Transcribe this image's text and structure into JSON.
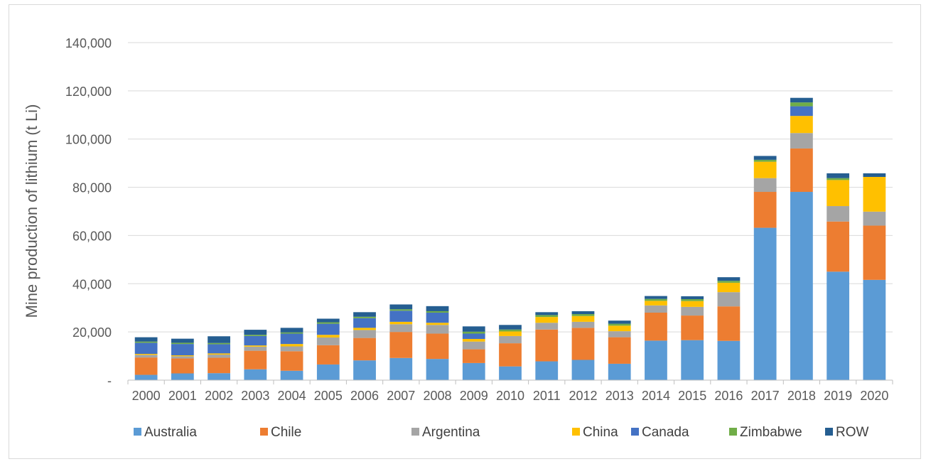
{
  "chart_data": {
    "type": "bar",
    "stacked": true,
    "title": "",
    "xlabel": "",
    "ylabel": "Mine production of lithium  (t Li)",
    "ylim": [
      0,
      140000
    ],
    "yticks": [
      0,
      20000,
      40000,
      60000,
      80000,
      100000,
      120000,
      140000
    ],
    "ytick_labels": [
      "-",
      "20,000",
      "40,000",
      "60,000",
      "80,000",
      "100,000",
      "120,000",
      "140,000"
    ],
    "grid": true,
    "legend_position": "bottom",
    "categories": [
      "2000",
      "2001",
      "2002",
      "2003",
      "2004",
      "2005",
      "2006",
      "2007",
      "2008",
      "2009",
      "2010",
      "2011",
      "2012",
      "2013",
      "2014",
      "2015",
      "2016",
      "2017",
      "2018",
      "2019",
      "2020"
    ],
    "series": [
      {
        "name": "Australia",
        "color": "#5b9bd5",
        "values": [
          2200,
          2800,
          2900,
          4500,
          3900,
          6500,
          8200,
          9200,
          8800,
          7100,
          5700,
          7800,
          8400,
          6800,
          16400,
          16600,
          16300,
          63200,
          78100,
          45000,
          41600
        ]
      },
      {
        "name": "Chile",
        "color": "#ed7d31",
        "values": [
          7200,
          6200,
          6400,
          7700,
          8100,
          8000,
          9300,
          10800,
          10500,
          5700,
          9600,
          13200,
          13300,
          11000,
          11600,
          10200,
          14300,
          14900,
          18000,
          20800,
          22500
        ]
      },
      {
        "name": "Argentina",
        "color": "#a5a5a5",
        "values": [
          1100,
          900,
          1300,
          1700,
          2000,
          3200,
          3300,
          3200,
          3600,
          3200,
          3000,
          2800,
          2500,
          2500,
          3000,
          3600,
          5900,
          5700,
          6400,
          6400,
          5800
        ]
      },
      {
        "name": "China",
        "color": "#ffc000",
        "values": [
          400,
          400,
          500,
          500,
          1000,
          1100,
          900,
          1000,
          900,
          1100,
          1900,
          2400,
          2400,
          2300,
          1900,
          2400,
          3900,
          6800,
          7100,
          10800,
          14400
        ]
      },
      {
        "name": "Canada",
        "color": "#4472c4",
        "values": [
          4600,
          4700,
          3800,
          3900,
          4300,
          4600,
          4000,
          4600,
          4200,
          2200,
          0,
          0,
          0,
          0,
          0,
          0,
          0,
          0,
          4000,
          0,
          0
        ]
      },
      {
        "name": "Zimbabwe",
        "color": "#70ad47",
        "values": [
          500,
          500,
          500,
          500,
          500,
          600,
          600,
          600,
          600,
          800,
          800,
          800,
          800,
          800,
          800,
          800,
          800,
          800,
          1600,
          800,
          0
        ]
      },
      {
        "name": "ROW",
        "color": "#255e91",
        "values": [
          1800,
          1700,
          2800,
          2100,
          1900,
          1500,
          1900,
          2000,
          2100,
          2200,
          1900,
          1200,
          1200,
          1300,
          1200,
          1200,
          1500,
          1600,
          1900,
          2000,
          1500
        ]
      }
    ]
  }
}
